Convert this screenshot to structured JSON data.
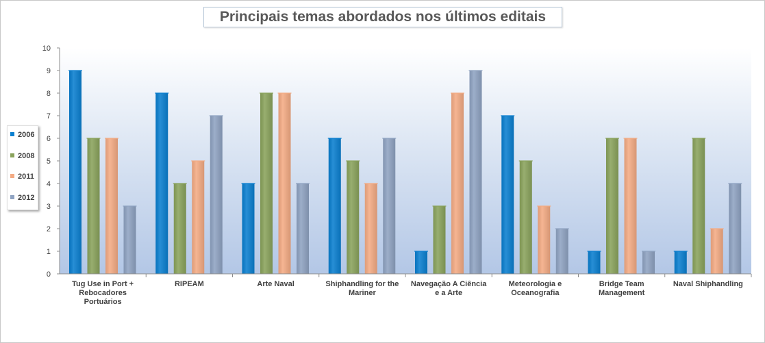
{
  "chart_data": {
    "type": "bar",
    "title": "Principais temas abordados nos últimos editais",
    "xlabel": "",
    "ylabel": "",
    "ylim": [
      0,
      10
    ],
    "yticks": [
      "0",
      "1",
      "2",
      "3",
      "4",
      "5",
      "6",
      "7",
      "8",
      "9",
      "10"
    ],
    "grid": false,
    "legend_position": "left",
    "categories": [
      "Tug Use in Port + Rebocadores Portuários",
      "RIPEAM",
      "Arte Naval",
      "Shiphandling for the Mariner",
      "Navegação A Ciência e a Arte",
      "Meteorologia e Oceanografia",
      "Bridge Team Management",
      "Naval Shiphandling"
    ],
    "category_lines": [
      [
        "Tug Use in Port +",
        "Rebocadores",
        "Portuários"
      ],
      [
        "RIPEAM"
      ],
      [
        "Arte Naval"
      ],
      [
        "Shiphandling for the",
        "Mariner"
      ],
      [
        "Navegação A Ciência",
        "e a Arte"
      ],
      [
        "Meteorologia e",
        "Oceanografia"
      ],
      [
        "Bridge Team",
        "Management"
      ],
      [
        "Naval Shiphandling"
      ]
    ],
    "series": [
      {
        "name": "2006",
        "color": "#0a7fd0",
        "values": [
          9,
          8,
          4,
          6,
          1,
          7,
          1,
          1
        ]
      },
      {
        "name": "2008",
        "color": "#8aa35c",
        "values": [
          6,
          4,
          8,
          5,
          3,
          5,
          6,
          6
        ]
      },
      {
        "name": "2011",
        "color": "#f4ab84",
        "values": [
          6,
          5,
          8,
          4,
          8,
          3,
          6,
          2
        ]
      },
      {
        "name": "2012",
        "color": "#8fa3c2",
        "values": [
          3,
          7,
          4,
          6,
          9,
          2,
          1,
          4
        ]
      }
    ]
  }
}
